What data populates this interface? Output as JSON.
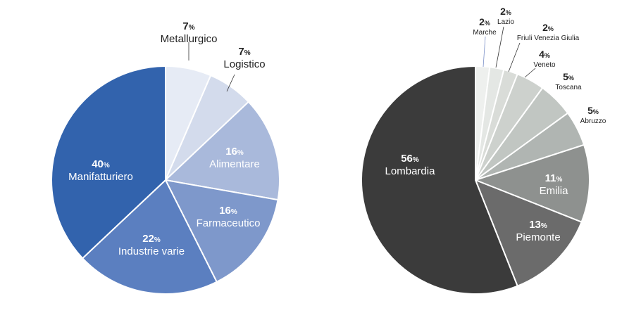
{
  "chart_data": [
    {
      "type": "pie",
      "categories": [
        "Metallurgico",
        "Logistico",
        "Alimentare",
        "Farmaceutico",
        "Industrie varie",
        "Manifatturiero"
      ],
      "values": [
        7,
        7,
        16,
        16,
        22,
        40
      ],
      "unit": "%",
      "colors": [
        "#e6ebf5",
        "#d3dbec",
        "#a9b9db",
        "#7e98cb",
        "#5b7fc0",
        "#3263ad"
      ],
      "label_color_inside": "#ffffff",
      "label_color_outside": "#222222"
    },
    {
      "type": "pie",
      "categories": [
        "Marche",
        "Lazio",
        "Friuli Venezia Giulia",
        "Veneto",
        "Toscana",
        "Abruzzo",
        "Emilia",
        "Piemonte",
        "Lombardia"
      ],
      "values": [
        2,
        2,
        2,
        4,
        5,
        5,
        11,
        13,
        56
      ],
      "unit": "%",
      "colors": [
        "#eef0ee",
        "#e4e7e4",
        "#d9dcd8",
        "#cdd1cd",
        "#c1c6c2",
        "#b0b5b2",
        "#8e918f",
        "#6b6b6b",
        "#3b3b3b"
      ],
      "label_color_inside": "#ffffff",
      "label_color_outside": "#222222"
    }
  ]
}
